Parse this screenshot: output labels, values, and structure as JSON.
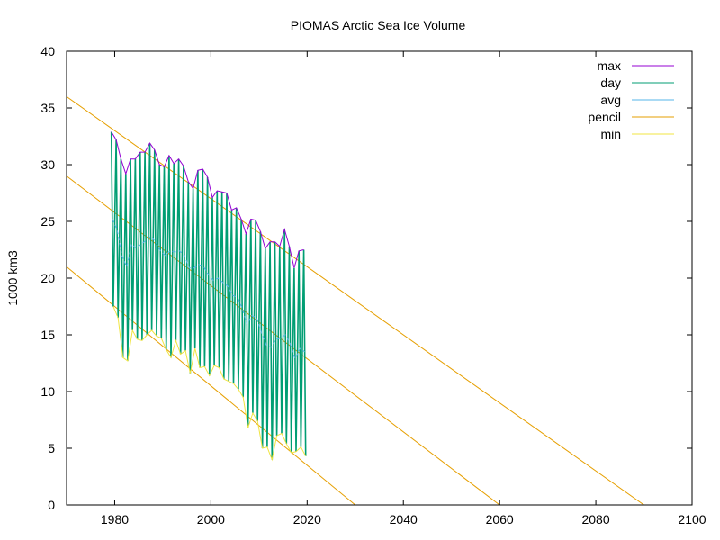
{
  "chart_data": {
    "type": "line",
    "title": "PIOMAS Arctic Sea Ice Volume",
    "xlabel": "",
    "ylabel": "1000 km3",
    "xlim": [
      1970,
      2100
    ],
    "ylim": [
      0,
      40
    ],
    "x_ticks": [
      1980,
      2000,
      2020,
      2040,
      2060,
      2080,
      2100
    ],
    "y_ticks": [
      0,
      5,
      10,
      15,
      20,
      25,
      30,
      35,
      40
    ],
    "grid": false,
    "legend_position": "top-right",
    "series": [
      {
        "name": "max",
        "color": "#9400d3",
        "x": [
          1979.3,
          1980.3,
          1981.3,
          1982.3,
          1983.3,
          1984.3,
          1985.3,
          1986.3,
          1987.3,
          1988.3,
          1989.3,
          1990.3,
          1991.3,
          1992.3,
          1993.3,
          1994.3,
          1995.3,
          1996.3,
          1997.3,
          1998.3,
          1999.3,
          2000.3,
          2001.3,
          2002.3,
          2003.3,
          2004.3,
          2005.3,
          2006.3,
          2007.3,
          2008.3,
          2009.3,
          2010.3,
          2011.3,
          2012.3,
          2013.3,
          2014.3,
          2015.3,
          2016.3,
          2017.3,
          2018.3,
          2019.3
        ],
        "y": [
          32.9,
          32.2,
          30.5,
          29.2,
          30.5,
          30.5,
          31.1,
          31.1,
          31.9,
          31.3,
          30.0,
          29.8,
          30.8,
          30.1,
          30.5,
          29.9,
          28.5,
          27.9,
          29.5,
          29.6,
          28.9,
          27.1,
          27.7,
          27.6,
          27.5,
          26.0,
          26.2,
          25.2,
          23.9,
          25.2,
          25.1,
          24.1,
          22.6,
          23.2,
          23.2,
          22.8,
          24.3,
          22.8,
          20.9,
          22.4,
          22.5
        ]
      },
      {
        "name": "day",
        "color": "#009e73",
        "note_style": "seasonal cycle between annual max (~April) and annual min (~September)",
        "x": [
          1979.3,
          1979.7,
          1980.3,
          1980.7,
          1981.3,
          1981.7,
          1982.3,
          1982.7,
          1983.3,
          1983.7,
          1984.3,
          1984.7,
          1985.3,
          1985.7,
          1986.3,
          1986.7,
          1987.3,
          1987.7,
          1988.3,
          1988.7,
          1989.3,
          1989.7,
          1990.3,
          1990.7,
          1991.3,
          1991.7,
          1992.3,
          1992.7,
          1993.3,
          1993.7,
          1994.3,
          1994.7,
          1995.3,
          1995.7,
          1996.3,
          1996.7,
          1997.3,
          1997.7,
          1998.3,
          1998.7,
          1999.3,
          1999.7,
          2000.3,
          2000.7,
          2001.3,
          2001.7,
          2002.3,
          2002.7,
          2003.3,
          2003.7,
          2004.3,
          2004.7,
          2005.3,
          2005.7,
          2006.3,
          2006.7,
          2007.3,
          2007.7,
          2008.3,
          2008.7,
          2009.3,
          2009.7,
          2010.3,
          2010.7,
          2011.3,
          2011.7,
          2012.3,
          2012.7,
          2013.3,
          2013.7,
          2014.3,
          2014.7,
          2015.3,
          2015.7,
          2016.3,
          2016.7,
          2017.3,
          2017.7,
          2018.3,
          2018.7,
          2019.3,
          2019.7
        ],
        "y": [
          32.9,
          17.5,
          32.2,
          16.5,
          30.5,
          13.0,
          29.2,
          12.7,
          30.5,
          15.4,
          30.5,
          14.6,
          31.1,
          14.5,
          31.1,
          15.0,
          31.9,
          15.4,
          31.3,
          14.9,
          30.0,
          14.7,
          29.8,
          13.7,
          30.8,
          13.0,
          30.1,
          14.5,
          30.5,
          13.3,
          29.9,
          13.6,
          28.5,
          11.6,
          27.9,
          13.8,
          29.5,
          12.1,
          29.6,
          12.2,
          28.9,
          11.4,
          27.1,
          12.3,
          27.7,
          12.1,
          27.6,
          11.1,
          27.5,
          10.9,
          26.0,
          10.7,
          26.2,
          10.2,
          25.2,
          9.5,
          23.9,
          6.8,
          25.2,
          8.1,
          25.1,
          7.4,
          24.1,
          5.0,
          22.6,
          5.1,
          23.2,
          4.0,
          23.2,
          6.1,
          22.8,
          6.3,
          24.3,
          5.4,
          22.8,
          4.6,
          20.9,
          4.7,
          22.4,
          5.1,
          22.5,
          4.3
        ]
      },
      {
        "name": "avg",
        "color": "#56b4e9",
        "x": [
          1979.5,
          1980.5,
          1981.5,
          1982.5,
          1983.5,
          1984.5,
          1985.5,
          1986.5,
          1987.5,
          1988.5,
          1989.5,
          1990.5,
          1991.5,
          1992.5,
          1993.5,
          1994.5,
          1995.5,
          1996.5,
          1997.5,
          1998.5,
          1999.5,
          2000.5,
          2001.5,
          2002.5,
          2003.5,
          2004.5,
          2005.5,
          2006.5,
          2007.5,
          2008.5,
          2009.5,
          2010.5,
          2011.5,
          2012.5,
          2013.5,
          2014.5,
          2015.5,
          2016.5,
          2017.5,
          2018.5,
          2019.5
        ],
        "y": [
          25.2,
          24.3,
          22.0,
          21.0,
          23.0,
          22.6,
          23.0,
          23.3,
          23.7,
          23.2,
          22.4,
          22.0,
          22.4,
          22.3,
          22.4,
          22.0,
          20.9,
          20.9,
          21.2,
          21.0,
          20.3,
          19.8,
          20.0,
          19.6,
          19.3,
          18.5,
          18.3,
          17.4,
          15.9,
          16.7,
          16.5,
          15.2,
          14.1,
          13.9,
          14.6,
          14.7,
          15.0,
          14.2,
          12.9,
          13.8,
          13.5
        ]
      },
      {
        "name": "pencil",
        "color": "#e69f00",
        "lines": [
          {
            "x": [
              1970,
              2090
            ],
            "y": [
              36.0,
              0
            ]
          },
          {
            "x": [
              1970,
              2060
            ],
            "y": [
              29.0,
              0
            ]
          },
          {
            "x": [
              1970,
              2030
            ],
            "y": [
              21.0,
              0
            ]
          }
        ]
      },
      {
        "name": "min",
        "color": "#f0e442",
        "x": [
          1979.7,
          1980.7,
          1981.7,
          1982.7,
          1983.7,
          1984.7,
          1985.7,
          1986.7,
          1987.7,
          1988.7,
          1989.7,
          1990.7,
          1991.7,
          1992.7,
          1993.7,
          1994.7,
          1995.7,
          1996.7,
          1997.7,
          1998.7,
          1999.7,
          2000.7,
          2001.7,
          2002.7,
          2003.7,
          2004.7,
          2005.7,
          2006.7,
          2007.7,
          2008.7,
          2009.7,
          2010.7,
          2011.7,
          2012.7,
          2013.7,
          2014.7,
          2015.7,
          2016.7,
          2017.7,
          2018.7,
          2019.7
        ],
        "y": [
          17.5,
          16.5,
          13.0,
          12.7,
          15.4,
          14.6,
          14.5,
          15.0,
          15.4,
          14.9,
          14.7,
          13.7,
          13.0,
          14.5,
          13.3,
          13.6,
          11.6,
          13.8,
          12.1,
          12.2,
          11.4,
          12.3,
          12.1,
          11.1,
          10.9,
          10.7,
          10.2,
          9.5,
          6.8,
          8.1,
          7.4,
          5.0,
          5.1,
          4.0,
          6.1,
          6.3,
          5.4,
          4.6,
          4.7,
          5.1,
          4.3
        ]
      }
    ]
  }
}
